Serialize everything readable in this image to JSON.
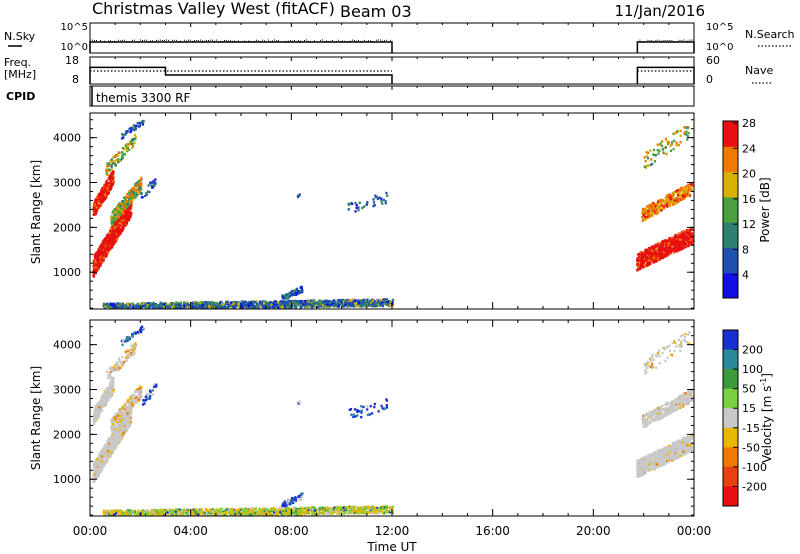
{
  "title": "Christmas Valley West (fitACF)",
  "beam_label": "Beam 03",
  "date": "11/Jan/2016",
  "cpid": "CPID",
  "cpid_label": "themis 3300 RF",
  "nsky": {
    "label": "N.Sky",
    "right_label": "N.Search",
    "yticks": [
      "10^5",
      "10^0"
    ],
    "right_yticks": [
      "10^5",
      "10^0"
    ]
  },
  "freq": {
    "label1": "Freq.",
    "label2": "[MHz]",
    "right_label": "Nave",
    "yticks": [
      "18",
      "8"
    ],
    "right_yticks": [
      "60",
      "0"
    ]
  },
  "chart_data": [
    {
      "type": "line",
      "title": "N.Sky / N.Search",
      "x": [
        "00:00",
        "12:00",
        "21:45",
        "24:00"
      ],
      "series": [
        {
          "name": "N.Sky",
          "segments": [
            [
              "00:00",
              "12:00"
            ],
            [
              "21:45",
              "24:00"
            ]
          ],
          "value": "10^0.5"
        }
      ]
    },
    {
      "type": "line",
      "title": "Freq. [MHz] / Nave",
      "series": [
        {
          "name": "Freq.",
          "points": [
            [
              "00:00",
              14.5
            ],
            [
              "03:00",
              14.5
            ],
            [
              "03:00",
              11.5
            ],
            [
              "12:00",
              11.5
            ],
            [
              "21:45",
              14.5
            ],
            [
              "24:00",
              14.5
            ]
          ]
        },
        {
          "name": "Nave",
          "points": [
            [
              "00:00",
              31
            ],
            [
              "24:00",
              31
            ]
          ]
        }
      ]
    },
    {
      "type": "heatmap",
      "title": "Power [dB]",
      "xlabel": "",
      "ylabel": "Slant Range [km]",
      "yticks": [
        "1000",
        "2000",
        "3000",
        "4000"
      ],
      "xlim": [
        "00:00",
        "24:00"
      ],
      "ylim": [
        180,
        4550
      ],
      "colorbar_label": "Power [dB]",
      "colorbar_ticks": [
        "4",
        "8",
        "12",
        "16",
        "20",
        "24",
        "28"
      ],
      "colors": [
        "#1010e0",
        "#2050b0",
        "#2e7f6f",
        "#4aa040",
        "#d8b000",
        "#f07a00",
        "#e81010"
      ]
    },
    {
      "type": "heatmap",
      "title": "Velocity [m s-1]",
      "xlabel": "Time UT",
      "ylabel": "Slant Range [km]",
      "xticks": [
        "00:00",
        "04:00",
        "08:00",
        "12:00",
        "16:00",
        "20:00",
        "00:00"
      ],
      "yticks": [
        "1000",
        "2000",
        "3000",
        "4000"
      ],
      "ylim": [
        180,
        4550
      ],
      "colorbar_label": "Velocity [m s^-1]",
      "colorbar_ticks": [
        "200",
        "100",
        "50",
        "15",
        "-15",
        "-50",
        "-100",
        "-200"
      ],
      "colors": [
        "#1830d0",
        "#2a8a9a",
        "#3c9a3c",
        "#7ad040",
        "#c8c8c8",
        "#e8b800",
        "#f07a00",
        "#e84010",
        "#e81010"
      ]
    }
  ],
  "power_cbar_label": "Power [dB]",
  "vel_cbar_label_main": "Velocity [m s",
  "vel_cbar_label_sup": "-1",
  "vel_cbar_label_end": "]",
  "ylabel": "Slant Range [km]",
  "xlabel": "Time UT"
}
